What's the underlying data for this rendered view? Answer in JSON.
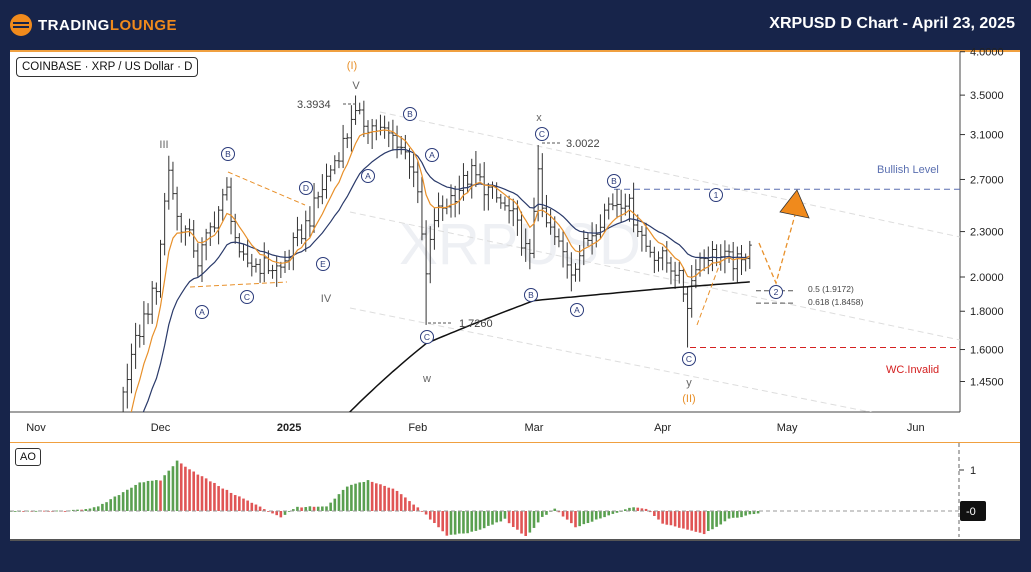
{
  "header": {
    "logo_part1": "TRADING",
    "logo_part2": "LOUNGE",
    "title": "XRPUSD D Chart - April 23, 2025"
  },
  "legend": "COINBASE · XRP / US Dollar · D",
  "ao_legend": "AO",
  "colors": {
    "bg": "#17244a",
    "accent": "#f08a1c",
    "bullish": "#5a6fb0",
    "invalid": "#d42020",
    "ao_up": "#5aa050",
    "ao_down": "#e05555",
    "ema_fast": "#e8902a",
    "ema_slow": "#2a3a6a"
  },
  "annotations": [
    "(I)",
    "V",
    "3.3934",
    "III",
    "B",
    "D",
    "E",
    "C",
    "A",
    "IV",
    "B",
    "A",
    "A",
    "C",
    "1.7260",
    "w",
    "x",
    "C",
    "3.0022",
    "B",
    "B",
    "A",
    "1",
    "2",
    "0.5 (1.9172)",
    "0.618 (1.8458)",
    "C",
    "y",
    "(II)",
    "Bullish Level",
    "WC.Invalid"
  ],
  "watermark": "XRPUSD",
  "chart_data": {
    "type": "ohlc",
    "title": "XRPUSD D Chart - April 23, 2025",
    "y_scale": "log",
    "ylim": [
      1.31,
      4.0
    ],
    "y_ticks": [
      "4.0000",
      "3.5000",
      "3.1000",
      "2.7000",
      "2.3000",
      "2.0000",
      "1.8000",
      "1.6000",
      "1.4500"
    ],
    "y_tick_values": [
      4.0,
      3.5,
      3.1,
      2.7,
      2.3,
      2.0,
      1.8,
      1.6,
      1.45
    ],
    "x_ticks": [
      "Nov",
      "Dec",
      "2025",
      "Feb",
      "Mar",
      "Apr",
      "May",
      "Jun"
    ],
    "x_tick_dates": [
      "2024-11-01",
      "2024-12-01",
      "2025-01-01",
      "2025-02-01",
      "2025-03-01",
      "2025-04-01",
      "2025-05-01",
      "2025-06-01"
    ],
    "price_waypoints": [
      [
        "2024-11-21",
        1.25
      ],
      [
        "2024-11-23",
        1.5
      ],
      [
        "2024-11-30",
        1.95
      ],
      [
        "2024-12-03",
        2.8
      ],
      [
        "2024-12-05",
        2.4
      ],
      [
        "2024-12-09",
        2.2
      ],
      [
        "2024-12-10",
        2.1
      ],
      [
        "2024-12-17",
        2.6
      ],
      [
        "2024-12-20",
        2.1
      ],
      [
        "2024-12-30",
        2.05
      ],
      [
        "2025-01-06",
        2.4
      ],
      [
        "2025-01-15",
        3.1
      ],
      [
        "2025-01-16",
        3.3
      ],
      [
        "2025-01-20",
        3.2
      ],
      [
        "2025-01-27",
        3.05
      ],
      [
        "2025-01-31",
        2.8
      ],
      [
        "2025-02-03",
        2.0
      ],
      [
        "2025-02-05",
        2.4
      ],
      [
        "2025-02-14",
        2.75
      ],
      [
        "2025-02-24",
        2.4
      ],
      [
        "2025-02-28",
        2.1
      ],
      [
        "2025-03-02",
        2.85
      ],
      [
        "2025-03-03",
        2.4
      ],
      [
        "2025-03-10",
        2.05
      ],
      [
        "2025-03-19",
        2.5
      ],
      [
        "2025-03-23",
        2.55
      ],
      [
        "2025-03-28",
        2.2
      ],
      [
        "2025-04-04",
        2.05
      ],
      [
        "2025-04-07",
        1.85
      ],
      [
        "2025-04-09",
        2.1
      ],
      [
        "2025-04-12",
        2.15
      ],
      [
        "2025-04-20",
        2.08
      ],
      [
        "2025-04-22",
        2.25
      ]
    ],
    "extremes": [
      [
        "2025-01-16",
        "high",
        3.3934
      ],
      [
        "2025-02-03",
        "low",
        1.726
      ],
      [
        "2025-03-02",
        "high",
        3.0022
      ],
      [
        "2025-04-07",
        "low",
        1.61
      ]
    ],
    "ma_long": [
      [
        "2025-01-15",
        1.31
      ],
      [
        "2025-02-03",
        1.63
      ],
      [
        "2025-03-01",
        1.86
      ],
      [
        "2025-04-01",
        1.93
      ],
      [
        "2025-04-22",
        1.97
      ]
    ],
    "levels": {
      "bullish": 2.62,
      "invalid": 1.61,
      "fib_0_5": 1.9172,
      "fib_0_618": 1.8458
    },
    "ao": {
      "y_ticks": [
        "1",
        "-0"
      ],
      "waypoints": [
        [
          "2024-10-26",
          0
        ],
        [
          "2024-11-09",
          0
        ],
        [
          "2024-11-16",
          0.1
        ],
        [
          "2024-11-21",
          0.4
        ],
        [
          "2024-11-26",
          0.7
        ],
        [
          "2024-12-01",
          0.75
        ],
        [
          "2024-12-05",
          1.22
        ],
        [
          "2024-12-10",
          0.9
        ],
        [
          "2024-12-17",
          0.5
        ],
        [
          "2024-12-24",
          0.15
        ],
        [
          "2024-12-30",
          -0.15
        ],
        [
          "2025-01-03",
          0.1
        ],
        [
          "2025-01-10",
          0.1
        ],
        [
          "2025-01-15",
          0.6
        ],
        [
          "2025-01-20",
          0.75
        ],
        [
          "2025-01-27",
          0.5
        ],
        [
          "2025-02-02",
          0.0
        ],
        [
          "2025-02-08",
          -0.6
        ],
        [
          "2025-02-15",
          -0.5
        ],
        [
          "2025-02-22",
          -0.2
        ],
        [
          "2025-02-27",
          -0.65
        ],
        [
          "2025-03-03",
          -0.15
        ],
        [
          "2025-03-06",
          0.05
        ],
        [
          "2025-03-11",
          -0.4
        ],
        [
          "2025-03-18",
          -0.15
        ],
        [
          "2025-03-25",
          0.1
        ],
        [
          "2025-03-28",
          0.05
        ],
        [
          "2025-04-01",
          -0.3
        ],
        [
          "2025-04-11",
          -0.55
        ],
        [
          "2025-04-17",
          -0.2
        ],
        [
          "2025-04-24",
          -0.05
        ]
      ]
    }
  }
}
